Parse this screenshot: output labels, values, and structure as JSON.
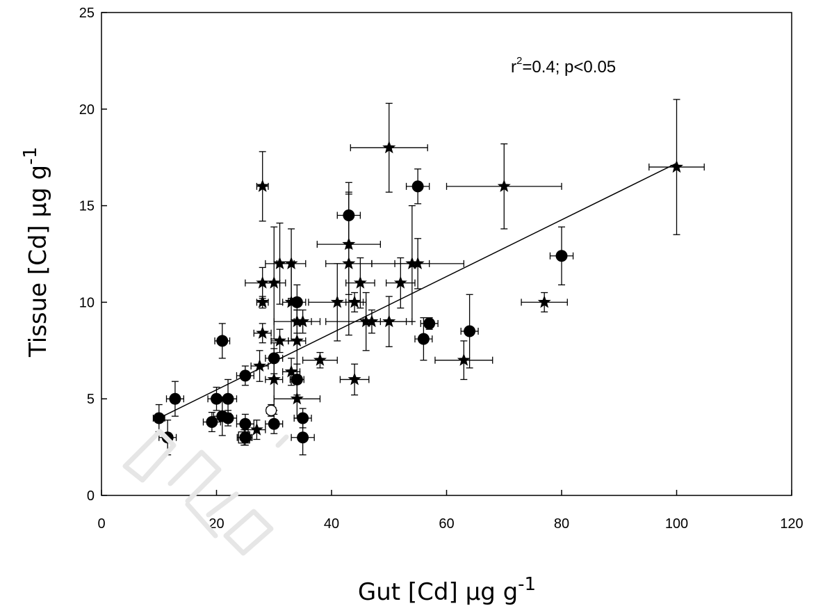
{
  "chart_data": {
    "type": "scatter",
    "xlabel": {
      "base": "Gut [Cd]  μg g",
      "sup": "-1"
    },
    "ylabel": {
      "base": "Tissue [Cd] μg g",
      "sup": "-1"
    },
    "xlim": [
      0,
      120
    ],
    "ylim": [
      0,
      25
    ],
    "x_ticks": [
      0,
      20,
      40,
      60,
      80,
      100,
      120
    ],
    "y_ticks": [
      0,
      5,
      10,
      15,
      20,
      25
    ],
    "grid": false,
    "annotation": {
      "r": "r",
      "sup": "2",
      "rest": "=0.4; p<0.05"
    },
    "regression_line": {
      "x": [
        10,
        100
      ],
      "y": [
        4.0,
        17.2
      ]
    },
    "series": [
      {
        "marker": "circle",
        "points": [
          {
            "x": 10,
            "y": 4.0,
            "ex": 1.0,
            "ey": 0.7
          },
          {
            "x": 11.5,
            "y": 3.0,
            "ex": 1.5,
            "ey": 0.9
          },
          {
            "x": 12.8,
            "y": 5.0,
            "ex": 1.5,
            "ey": 0.9
          },
          {
            "x": 19.2,
            "y": 3.8,
            "ex": 1.5,
            "ey": 0.5
          },
          {
            "x": 20.0,
            "y": 5.0,
            "ex": 1.5,
            "ey": 0.6
          },
          {
            "x": 21.0,
            "y": 4.1,
            "ex": 1.5,
            "ey": 1.0
          },
          {
            "x": 21.0,
            "y": 8.0,
            "ex": 1.3,
            "ey": 0.9
          },
          {
            "x": 22.0,
            "y": 4.0,
            "ex": 1.5,
            "ey": 0.4
          },
          {
            "x": 22.0,
            "y": 5.0,
            "ex": 1.5,
            "ey": 1.0
          },
          {
            "x": 25.0,
            "y": 6.2,
            "ex": 1.5,
            "ey": 0.5
          },
          {
            "x": 25.0,
            "y": 3.7,
            "ex": 1.5,
            "ey": 0.5
          },
          {
            "x": 25.0,
            "y": 3.0,
            "ex": 1.2,
            "ey": 0.4
          },
          {
            "x": 30.0,
            "y": 7.1,
            "ex": 1.5,
            "ey": 0.8
          },
          {
            "x": 30.0,
            "y": 3.7,
            "ex": 1.5,
            "ey": 0.5
          },
          {
            "x": 34.0,
            "y": 10.0,
            "ex": 1.5,
            "ey": 0.9
          },
          {
            "x": 34.0,
            "y": 6.0,
            "ex": 1.2,
            "ey": 0.8
          },
          {
            "x": 35.0,
            "y": 4.0,
            "ex": 1.5,
            "ey": 0.5
          },
          {
            "x": 35.0,
            "y": 3.0,
            "ex": 2.0,
            "ey": 0.9
          },
          {
            "x": 43.0,
            "y": 14.5,
            "ex": 2.0,
            "ey": 1.7
          },
          {
            "x": 55.0,
            "y": 16.0,
            "ex": 2.0,
            "ey": 0.9
          },
          {
            "x": 56.0,
            "y": 8.1,
            "ex": 1.5,
            "ey": 1.1
          },
          {
            "x": 57.0,
            "y": 8.9,
            "ex": 1.5,
            "ey": 0.3
          },
          {
            "x": 64.0,
            "y": 8.5,
            "ex": 1.5,
            "ey": 1.9
          },
          {
            "x": 80.0,
            "y": 12.4,
            "ex": 2.0,
            "ey": 1.5
          }
        ]
      },
      {
        "marker": "star",
        "points": [
          {
            "x": 27.0,
            "y": 3.4,
            "ex": 1.5,
            "ey": 0.5
          },
          {
            "x": 27.5,
            "y": 6.7,
            "ex": 1.5,
            "ey": 0.8
          },
          {
            "x": 28.0,
            "y": 16.0,
            "ex": 1.0,
            "ey": 1.8
          },
          {
            "x": 28.0,
            "y": 11.0,
            "ex": 3.0,
            "ey": 0.8
          },
          {
            "x": 28.0,
            "y": 10.0,
            "ex": 1.0,
            "ey": 0.3
          },
          {
            "x": 28.0,
            "y": 8.4,
            "ex": 1.5,
            "ey": 0.5
          },
          {
            "x": 30.0,
            "y": 11.0,
            "ex": 2.0,
            "ey": 2.9
          },
          {
            "x": 30.0,
            "y": 6.0,
            "ex": 1.5,
            "ey": 1.6
          },
          {
            "x": 31.0,
            "y": 12.0,
            "ex": 2.5,
            "ey": 2.1
          },
          {
            "x": 31.0,
            "y": 8.0,
            "ex": 1.5,
            "ey": 0.6
          },
          {
            "x": 33.0,
            "y": 12.0,
            "ex": 2.5,
            "ey": 1.8
          },
          {
            "x": 33.0,
            "y": 10.0,
            "ex": 1.5,
            "ey": 2.0
          },
          {
            "x": 33.0,
            "y": 6.4,
            "ex": 1.5,
            "ey": 0.7
          },
          {
            "x": 34.0,
            "y": 9.0,
            "ex": 4.0,
            "ey": 0.6
          },
          {
            "x": 34.0,
            "y": 8.0,
            "ex": 1.5,
            "ey": 1.6
          },
          {
            "x": 34.0,
            "y": 5.0,
            "ex": 4.0,
            "ey": 1.0
          },
          {
            "x": 35.0,
            "y": 9.0,
            "ex": 1.5,
            "ey": 0.6
          },
          {
            "x": 38.0,
            "y": 7.0,
            "ex": 3.0,
            "ey": 0.4
          },
          {
            "x": 41.0,
            "y": 10.0,
            "ex": 5.0,
            "ey": 2.0
          },
          {
            "x": 43.0,
            "y": 13.0,
            "ex": 5.5,
            "ey": 2.6
          },
          {
            "x": 43.0,
            "y": 12.0,
            "ex": 4.0,
            "ey": 3.7
          },
          {
            "x": 44.0,
            "y": 10.0,
            "ex": 1.5,
            "ey": 0.5
          },
          {
            "x": 44.0,
            "y": 6.0,
            "ex": 2.5,
            "ey": 0.8
          },
          {
            "x": 45.0,
            "y": 11.0,
            "ex": 2.5,
            "ey": 1.3
          },
          {
            "x": 46.0,
            "y": 9.0,
            "ex": 7.0,
            "ey": 1.5
          },
          {
            "x": 47.0,
            "y": 9.0,
            "ex": 1.5,
            "ey": 0.6
          },
          {
            "x": 50.0,
            "y": 18.0,
            "ex": 6.7,
            "ey": 2.3
          },
          {
            "x": 50.0,
            "y": 9.0,
            "ex": 4.0,
            "ey": 1.3
          },
          {
            "x": 52.0,
            "y": 11.0,
            "ex": 2.5,
            "ey": 1.3
          },
          {
            "x": 54.0,
            "y": 12.0,
            "ex": 3.0,
            "ey": 3.0
          },
          {
            "x": 55.0,
            "y": 12.0,
            "ex": 8.0,
            "ey": 1.3
          },
          {
            "x": 63.0,
            "y": 7.0,
            "ex": 5.0,
            "ey": 1.0
          },
          {
            "x": 70.0,
            "y": 16.0,
            "ex": 10.0,
            "ey": 2.2
          },
          {
            "x": 77.0,
            "y": 10.0,
            "ex": 4.0,
            "ey": 0.5
          },
          {
            "x": 100.0,
            "y": 17.0,
            "ex": 4.8,
            "ey": 3.5
          }
        ]
      },
      {
        "marker": "open-circle",
        "points": [
          {
            "x": 29.5,
            "y": 4.4,
            "ex": 0.8,
            "ey": 0.3
          }
        ]
      },
      {
        "marker": "open-square",
        "points": [
          {
            "x": 24.8,
            "y": 3.0,
            "ex": 1.2,
            "ey": 0.4
          }
        ]
      }
    ]
  }
}
